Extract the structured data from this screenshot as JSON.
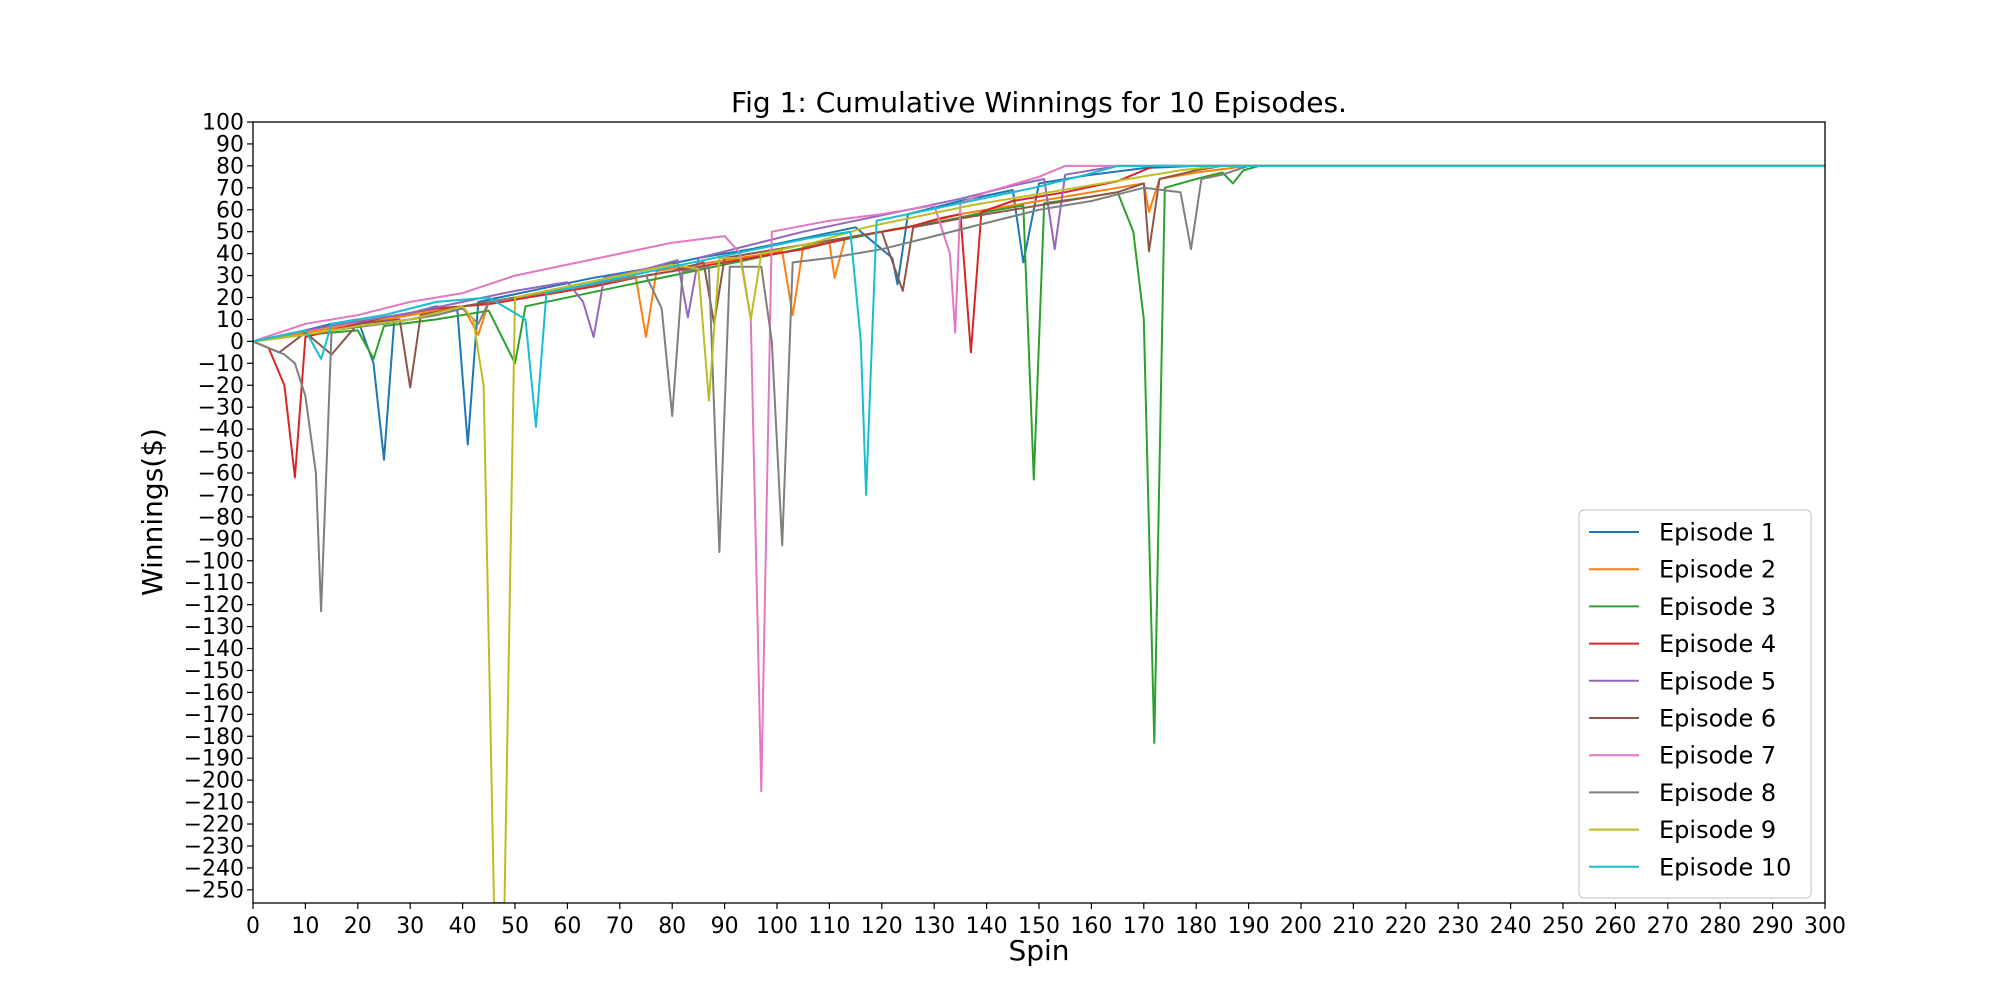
{
  "chart_data": {
    "type": "line",
    "title": "Fig 1: Cumulative Winnings for 10 Episodes.",
    "xlabel": "Spin",
    "ylabel": "Winnings($)",
    "xlim": [
      0,
      300
    ],
    "ylim": [
      -256,
      100
    ],
    "x_ticks": [
      0,
      10,
      20,
      30,
      40,
      50,
      60,
      70,
      80,
      90,
      100,
      110,
      120,
      130,
      140,
      150,
      160,
      170,
      180,
      190,
      200,
      210,
      220,
      230,
      240,
      250,
      260,
      270,
      280,
      290,
      300
    ],
    "y_ticks": [
      100,
      90,
      80,
      70,
      60,
      50,
      40,
      30,
      20,
      10,
      0,
      -10,
      -20,
      -30,
      -40,
      -50,
      -60,
      -70,
      -80,
      -90,
      -100,
      -110,
      -120,
      -130,
      -140,
      -150,
      -160,
      -170,
      -180,
      -190,
      -200,
      -210,
      -220,
      -230,
      -240,
      -250
    ],
    "grid": false,
    "legend_position": "lower-right",
    "series": [
      {
        "name": "Episode 1",
        "color": "#1f77b4",
        "points": [
          [
            0,
            0
          ],
          [
            5,
            2
          ],
          [
            10,
            5
          ],
          [
            15,
            8
          ],
          [
            20,
            10
          ],
          [
            23,
            -10
          ],
          [
            25,
            -54
          ],
          [
            27,
            11
          ],
          [
            35,
            16
          ],
          [
            39,
            14
          ],
          [
            41,
            -47
          ],
          [
            43,
            18
          ],
          [
            55,
            24
          ],
          [
            65,
            29
          ],
          [
            75,
            33
          ],
          [
            85,
            38
          ],
          [
            95,
            42
          ],
          [
            105,
            47
          ],
          [
            115,
            52
          ],
          [
            122,
            38
          ],
          [
            123,
            26
          ],
          [
            125,
            58
          ],
          [
            135,
            64
          ],
          [
            145,
            69
          ],
          [
            147,
            36
          ],
          [
            150,
            72
          ],
          [
            160,
            76
          ],
          [
            170,
            79
          ],
          [
            180,
            80
          ],
          [
            190,
            80
          ],
          [
            300,
            80
          ]
        ]
      },
      {
        "name": "Episode 2",
        "color": "#ff7f0e",
        "points": [
          [
            0,
            0
          ],
          [
            10,
            4
          ],
          [
            20,
            8
          ],
          [
            30,
            12
          ],
          [
            40,
            16
          ],
          [
            43,
            3
          ],
          [
            45,
            18
          ],
          [
            55,
            22
          ],
          [
            65,
            26
          ],
          [
            73,
            30
          ],
          [
            75,
            2
          ],
          [
            77,
            32
          ],
          [
            90,
            37
          ],
          [
            101,
            41
          ],
          [
            103,
            12
          ],
          [
            105,
            43
          ],
          [
            110,
            45
          ],
          [
            111,
            29
          ],
          [
            113,
            47
          ],
          [
            125,
            52
          ],
          [
            135,
            58
          ],
          [
            145,
            62
          ],
          [
            155,
            66
          ],
          [
            165,
            70
          ],
          [
            170,
            72
          ],
          [
            171,
            59
          ],
          [
            173,
            74
          ],
          [
            180,
            77
          ],
          [
            190,
            80
          ],
          [
            300,
            80
          ]
        ]
      },
      {
        "name": "Episode 3",
        "color": "#2ca02c",
        "points": [
          [
            0,
            0
          ],
          [
            10,
            3
          ],
          [
            20,
            5
          ],
          [
            23,
            -8
          ],
          [
            25,
            7
          ],
          [
            35,
            10
          ],
          [
            45,
            14
          ],
          [
            50,
            -10
          ],
          [
            52,
            16
          ],
          [
            62,
            21
          ],
          [
            72,
            26
          ],
          [
            82,
            31
          ],
          [
            92,
            36
          ],
          [
            102,
            41
          ],
          [
            112,
            46
          ],
          [
            122,
            51
          ],
          [
            132,
            55
          ],
          [
            140,
            59
          ],
          [
            147,
            62
          ],
          [
            149,
            -63
          ],
          [
            151,
            63
          ],
          [
            160,
            66
          ],
          [
            165,
            68
          ],
          [
            168,
            50
          ],
          [
            170,
            10
          ],
          [
            172,
            -183
          ],
          [
            174,
            70
          ],
          [
            180,
            74
          ],
          [
            185,
            77
          ],
          [
            187,
            72
          ],
          [
            189,
            78
          ],
          [
            192,
            80
          ],
          [
            300,
            80
          ]
        ]
      },
      {
        "name": "Episode 4",
        "color": "#d62728",
        "points": [
          [
            0,
            0
          ],
          [
            3,
            -3
          ],
          [
            6,
            -20
          ],
          [
            8,
            -62
          ],
          [
            10,
            2
          ],
          [
            15,
            5
          ],
          [
            20,
            8
          ],
          [
            25,
            11
          ],
          [
            35,
            15
          ],
          [
            45,
            17
          ],
          [
            55,
            21
          ],
          [
            65,
            25
          ],
          [
            75,
            30
          ],
          [
            85,
            34
          ],
          [
            95,
            38
          ],
          [
            105,
            42
          ],
          [
            115,
            48
          ],
          [
            125,
            52
          ],
          [
            131,
            56
          ],
          [
            135,
            58
          ],
          [
            137,
            -5
          ],
          [
            139,
            59
          ],
          [
            145,
            64
          ],
          [
            155,
            68
          ],
          [
            165,
            73
          ],
          [
            172,
            80
          ],
          [
            180,
            80
          ],
          [
            300,
            80
          ]
        ]
      },
      {
        "name": "Episode 5",
        "color": "#9467bd",
        "points": [
          [
            0,
            0
          ],
          [
            10,
            5
          ],
          [
            20,
            9
          ],
          [
            30,
            13
          ],
          [
            40,
            18
          ],
          [
            50,
            23
          ],
          [
            60,
            27
          ],
          [
            63,
            18
          ],
          [
            65,
            2
          ],
          [
            67,
            29
          ],
          [
            75,
            33
          ],
          [
            81,
            37
          ],
          [
            83,
            11
          ],
          [
            85,
            38
          ],
          [
            95,
            44
          ],
          [
            105,
            50
          ],
          [
            115,
            55
          ],
          [
            125,
            60
          ],
          [
            135,
            65
          ],
          [
            145,
            71
          ],
          [
            151,
            74
          ],
          [
            153,
            42
          ],
          [
            155,
            76
          ],
          [
            160,
            78
          ],
          [
            165,
            80
          ],
          [
            300,
            80
          ]
        ]
      },
      {
        "name": "Episode 6",
        "color": "#8c564b",
        "points": [
          [
            0,
            0
          ],
          [
            5,
            -5
          ],
          [
            10,
            4
          ],
          [
            15,
            -6
          ],
          [
            20,
            8
          ],
          [
            28,
            10
          ],
          [
            30,
            -21
          ],
          [
            32,
            12
          ],
          [
            40,
            16
          ],
          [
            50,
            20
          ],
          [
            60,
            24
          ],
          [
            70,
            28
          ],
          [
            80,
            32
          ],
          [
            86,
            36
          ],
          [
            88,
            8
          ],
          [
            90,
            38
          ],
          [
            100,
            42
          ],
          [
            110,
            46
          ],
          [
            120,
            50
          ],
          [
            124,
            23
          ],
          [
            126,
            52
          ],
          [
            135,
            56
          ],
          [
            145,
            60
          ],
          [
            155,
            64
          ],
          [
            165,
            68
          ],
          [
            170,
            72
          ],
          [
            171,
            41
          ],
          [
            173,
            74
          ],
          [
            180,
            78
          ],
          [
            185,
            80
          ],
          [
            300,
            80
          ]
        ]
      },
      {
        "name": "Episode 7",
        "color": "#e377c2",
        "points": [
          [
            0,
            0
          ],
          [
            10,
            8
          ],
          [
            20,
            12
          ],
          [
            30,
            18
          ],
          [
            40,
            22
          ],
          [
            50,
            30
          ],
          [
            60,
            35
          ],
          [
            70,
            40
          ],
          [
            80,
            45
          ],
          [
            90,
            48
          ],
          [
            93,
            40
          ],
          [
            95,
            10
          ],
          [
            97,
            -205
          ],
          [
            99,
            50
          ],
          [
            110,
            55
          ],
          [
            120,
            58
          ],
          [
            130,
            62
          ],
          [
            133,
            40
          ],
          [
            134,
            4
          ],
          [
            135,
            63
          ],
          [
            140,
            68
          ],
          [
            150,
            75
          ],
          [
            155,
            80
          ],
          [
            300,
            80
          ]
        ]
      },
      {
        "name": "Episode 8",
        "color": "#7f7f7f",
        "points": [
          [
            0,
            0
          ],
          [
            3,
            -3
          ],
          [
            6,
            -6
          ],
          [
            8,
            -10
          ],
          [
            10,
            -25
          ],
          [
            12,
            -60
          ],
          [
            13,
            -123
          ],
          [
            15,
            5
          ],
          [
            25,
            8
          ],
          [
            35,
            12
          ],
          [
            40,
            15
          ],
          [
            43,
            8
          ],
          [
            45,
            18
          ],
          [
            55,
            22
          ],
          [
            65,
            26
          ],
          [
            75,
            30
          ],
          [
            78,
            15
          ],
          [
            80,
            -34
          ],
          [
            82,
            32
          ],
          [
            87,
            34
          ],
          [
            89,
            -96
          ],
          [
            91,
            34
          ],
          [
            97,
            34
          ],
          [
            99,
            0
          ],
          [
            101,
            -93
          ],
          [
            103,
            36
          ],
          [
            110,
            38
          ],
          [
            120,
            42
          ],
          [
            130,
            48
          ],
          [
            140,
            54
          ],
          [
            150,
            60
          ],
          [
            160,
            64
          ],
          [
            170,
            70
          ],
          [
            177,
            68
          ],
          [
            179,
            42
          ],
          [
            181,
            74
          ],
          [
            185,
            76
          ],
          [
            190,
            80
          ],
          [
            300,
            80
          ]
        ]
      },
      {
        "name": "Episode 9",
        "color": "#bcbd22",
        "points": [
          [
            0,
            0
          ],
          [
            10,
            3
          ],
          [
            20,
            7
          ],
          [
            30,
            10
          ],
          [
            40,
            16
          ],
          [
            42,
            10
          ],
          [
            44,
            -20
          ],
          [
            46,
            -256
          ],
          [
            48,
            -256
          ],
          [
            50,
            20
          ],
          [
            60,
            25
          ],
          [
            70,
            30
          ],
          [
            80,
            35
          ],
          [
            85,
            33
          ],
          [
            87,
            -27
          ],
          [
            89,
            38
          ],
          [
            93,
            38
          ],
          [
            95,
            10
          ],
          [
            97,
            40
          ],
          [
            107,
            45
          ],
          [
            117,
            52
          ],
          [
            127,
            57
          ],
          [
            137,
            62
          ],
          [
            147,
            66
          ],
          [
            157,
            70
          ],
          [
            167,
            74
          ],
          [
            177,
            78
          ],
          [
            185,
            80
          ],
          [
            300,
            80
          ]
        ]
      },
      {
        "name": "Episode 10",
        "color": "#17becf",
        "points": [
          [
            0,
            0
          ],
          [
            10,
            5
          ],
          [
            13,
            -8
          ],
          [
            15,
            8
          ],
          [
            25,
            12
          ],
          [
            35,
            18
          ],
          [
            45,
            20
          ],
          [
            52,
            10
          ],
          [
            54,
            -39
          ],
          [
            56,
            22
          ],
          [
            66,
            27
          ],
          [
            76,
            32
          ],
          [
            86,
            37
          ],
          [
            96,
            42
          ],
          [
            106,
            47
          ],
          [
            114,
            50
          ],
          [
            116,
            0
          ],
          [
            117,
            -70
          ],
          [
            119,
            55
          ],
          [
            129,
            60
          ],
          [
            139,
            65
          ],
          [
            149,
            70
          ],
          [
            159,
            76
          ],
          [
            165,
            80
          ],
          [
            300,
            80
          ]
        ]
      }
    ]
  }
}
